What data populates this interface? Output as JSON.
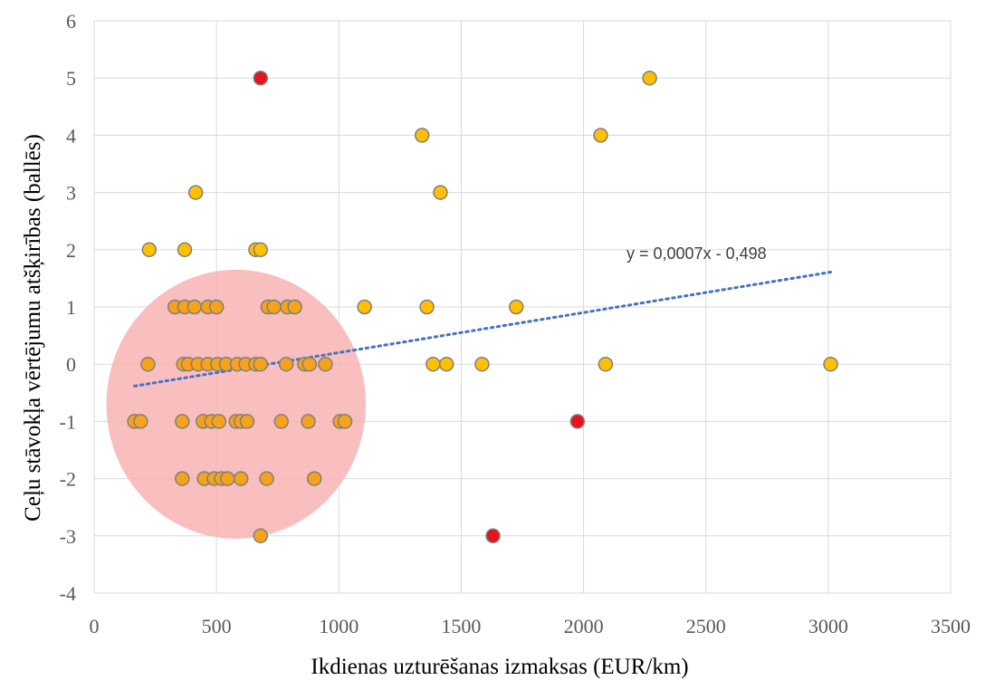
{
  "chart_data": {
    "type": "scatter",
    "xlabel": "Ikdienas uzturēšanas izmaksas (EUR/km)",
    "ylabel": "Ceļu stāvokļa vērtējumu atšķirības (ballēs)",
    "xlim": [
      0,
      3500
    ],
    "ylim": [
      -4,
      6
    ],
    "xticks": [
      0,
      500,
      1000,
      1500,
      2000,
      2500,
      3000,
      3500
    ],
    "yticks": [
      -4,
      -3,
      -2,
      -1,
      0,
      1,
      2,
      3,
      4,
      5,
      6
    ],
    "grid": true,
    "legend": "none",
    "colors": {
      "grid": "#d9d9d9",
      "point_fill": "#ffc000",
      "cluster_point_fill": "#f7a21b",
      "point_stroke": "#7f7f7f",
      "outlier_fill": "#e8141c",
      "trendline": "#4472c4",
      "highlight": "#f8b4b4"
    },
    "trendline": {
      "label": "y = 0,0007x - 0,498",
      "slope": 0.0007,
      "intercept": -0.498,
      "x_range": [
        165,
        3010
      ]
    },
    "highlight_circle": {
      "cx": 580,
      "cy": -0.7,
      "rx": 530,
      "ry": 2.35
    },
    "points": [
      {
        "x": 225,
        "y": 2
      },
      {
        "x": 370,
        "y": 2
      },
      {
        "x": 660,
        "y": 2
      },
      {
        "x": 680,
        "y": 2
      },
      {
        "x": 415,
        "y": 3
      },
      {
        "x": 1340,
        "y": 4
      },
      {
        "x": 1415,
        "y": 3
      },
      {
        "x": 2070,
        "y": 4
      },
      {
        "x": 2270,
        "y": 5
      },
      {
        "x": 1105,
        "y": 1
      },
      {
        "x": 1360,
        "y": 1
      },
      {
        "x": 1725,
        "y": 1
      },
      {
        "x": 1385,
        "y": 0
      },
      {
        "x": 1440,
        "y": 0
      },
      {
        "x": 1585,
        "y": 0
      },
      {
        "x": 2090,
        "y": 0
      },
      {
        "x": 3010,
        "y": 0
      }
    ],
    "cluster_points": [
      {
        "x": 330,
        "y": 1
      },
      {
        "x": 370,
        "y": 1
      },
      {
        "x": 410,
        "y": 1
      },
      {
        "x": 465,
        "y": 1
      },
      {
        "x": 500,
        "y": 1
      },
      {
        "x": 710,
        "y": 1
      },
      {
        "x": 735,
        "y": 1
      },
      {
        "x": 790,
        "y": 1
      },
      {
        "x": 820,
        "y": 1
      },
      {
        "x": 220,
        "y": 0
      },
      {
        "x": 365,
        "y": 0
      },
      {
        "x": 385,
        "y": 0
      },
      {
        "x": 425,
        "y": 0
      },
      {
        "x": 465,
        "y": 0
      },
      {
        "x": 505,
        "y": 0
      },
      {
        "x": 540,
        "y": 0
      },
      {
        "x": 585,
        "y": 0
      },
      {
        "x": 620,
        "y": 0
      },
      {
        "x": 660,
        "y": 0
      },
      {
        "x": 680,
        "y": 0
      },
      {
        "x": 785,
        "y": 0
      },
      {
        "x": 860,
        "y": 0
      },
      {
        "x": 880,
        "y": 0
      },
      {
        "x": 945,
        "y": 0
      },
      {
        "x": 165,
        "y": -1
      },
      {
        "x": 190,
        "y": -1
      },
      {
        "x": 360,
        "y": -1
      },
      {
        "x": 445,
        "y": -1
      },
      {
        "x": 480,
        "y": -1
      },
      {
        "x": 510,
        "y": -1
      },
      {
        "x": 580,
        "y": -1
      },
      {
        "x": 600,
        "y": -1
      },
      {
        "x": 625,
        "y": -1
      },
      {
        "x": 765,
        "y": -1
      },
      {
        "x": 875,
        "y": -1
      },
      {
        "x": 1005,
        "y": -1
      },
      {
        "x": 1025,
        "y": -1
      },
      {
        "x": 360,
        "y": -2
      },
      {
        "x": 450,
        "y": -2
      },
      {
        "x": 490,
        "y": -2
      },
      {
        "x": 520,
        "y": -2
      },
      {
        "x": 545,
        "y": -2
      },
      {
        "x": 600,
        "y": -2
      },
      {
        "x": 705,
        "y": -2
      },
      {
        "x": 900,
        "y": -2
      },
      {
        "x": 680,
        "y": -3
      }
    ],
    "outliers": [
      {
        "x": 680,
        "y": 5
      },
      {
        "x": 1975,
        "y": -1
      },
      {
        "x": 1630,
        "y": -3
      }
    ]
  }
}
